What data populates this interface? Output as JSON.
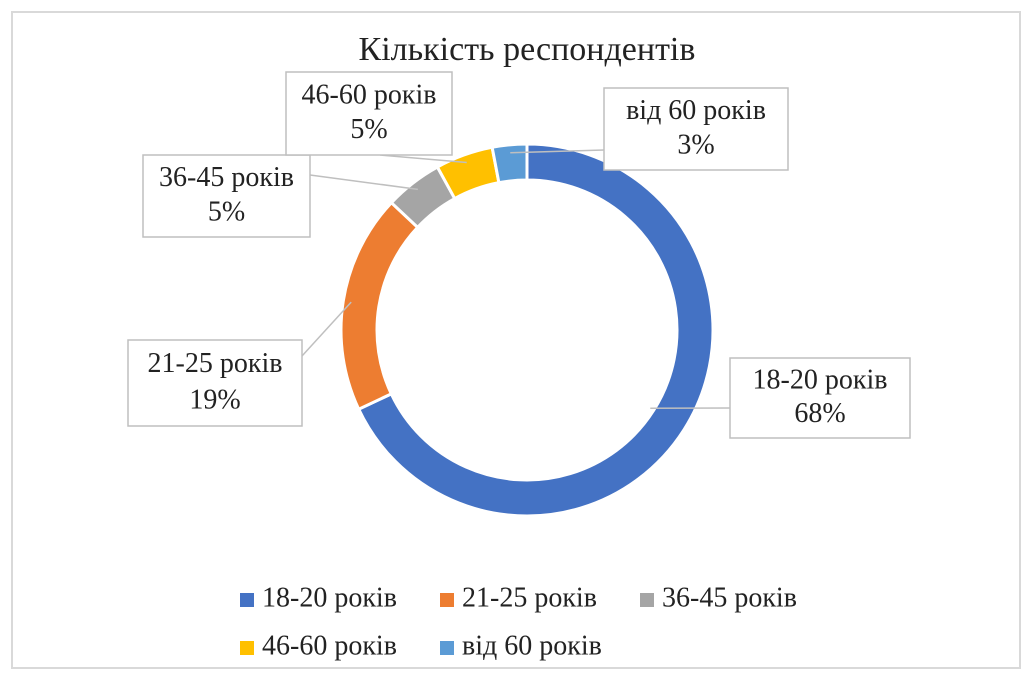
{
  "chart_data": {
    "type": "donut",
    "title": "Кількість респондентів",
    "categories": [
      "18-20 років",
      "21-25 років",
      "36-45 років",
      "46-60 років",
      "від 60 років"
    ],
    "values": [
      68,
      19,
      5,
      5,
      3
    ],
    "value_labels": [
      "68%",
      "19%",
      "5%",
      "5%",
      "3%"
    ],
    "colors": [
      "#4472c4",
      "#ed7d31",
      "#a5a5a5",
      "#ffc000",
      "#5b9bd5"
    ],
    "legend": "bottom"
  }
}
